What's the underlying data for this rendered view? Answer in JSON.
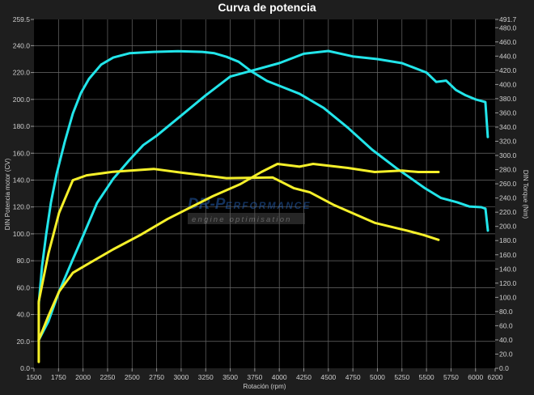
{
  "chart_data": {
    "type": "line",
    "title": "Curva de potencia",
    "xlabel": "Rotación (rpm)",
    "ylabel": "DIN Potencia motor (CV)",
    "y2label": "DIN Torque (Nm)",
    "xlim": [
      1500,
      6200
    ],
    "ylim": [
      0,
      259.5
    ],
    "y2lim": [
      0,
      491.7
    ],
    "xticks": [
      1500,
      1750,
      2000,
      2250,
      2500,
      2750,
      3000,
      3250,
      3500,
      3750,
      4000,
      4250,
      4500,
      4750,
      5000,
      5250,
      5500,
      5750,
      6000,
      6200
    ],
    "yticks": [
      "0.0",
      "20.0",
      "40.0",
      "60.0",
      "80.0",
      "100.0",
      "120.0",
      "140.0",
      "160.0",
      "180.0",
      "200.0",
      "220.0",
      "240.0",
      "259.5"
    ],
    "y2ticks": [
      "0.0",
      "20.0",
      "40.0",
      "60.0",
      "80.0",
      "100.0",
      "120.0",
      "140.0",
      "160.0",
      "180.0",
      "200.0",
      "220.0",
      "240.0",
      "260.0",
      "280.0",
      "300.0",
      "320.0",
      "340.0",
      "360.0",
      "380.0",
      "400.0",
      "420.0",
      "440.0",
      "460.0",
      "480.0",
      "491.7"
    ],
    "grid": true,
    "background": "#000000",
    "series": [
      {
        "axis": "left",
        "color": "#22e5ea",
        "x": [
          1549,
          1648,
          1756,
          1896,
          2003,
          2143,
          2308,
          2473,
          2613,
          2750,
          3000,
          3250,
          3500,
          3750,
          4000,
          4250,
          4500,
          4750,
          5000,
          5250,
          5500,
          5600,
          5700,
          5800,
          5900,
          6000,
          6100,
          6125
        ],
        "y": [
          21,
          35,
          57,
          81,
          99,
          123,
          141,
          155,
          166,
          173,
          188,
          203,
          217,
          222,
          227,
          234,
          236,
          232,
          230,
          227,
          220,
          213,
          214,
          207,
          203,
          200,
          198,
          172
        ]
      },
      {
        "axis": "right",
        "color": "#22e5ea",
        "x": [
          1549,
          1582,
          1624,
          1673,
          1731,
          1813,
          1896,
          1978,
          2061,
          2184,
          2308,
          2473,
          2720,
          2968,
          3215,
          3339,
          3462,
          3586,
          3710,
          3875,
          4040,
          4205,
          4452,
          4699,
          4947,
          5194,
          5359,
          5483,
          5648,
          5813,
          5936,
          6060,
          6101,
          6126
        ],
        "y": [
          91,
          143,
          188,
          234,
          274,
          319,
          359,
          388,
          408,
          428,
          438,
          444,
          446,
          447,
          446,
          444,
          439,
          432,
          419,
          405,
          396,
          387,
          367,
          339,
          308,
          282,
          266,
          254,
          240,
          234,
          228,
          227,
          225,
          194
        ]
      },
      {
        "axis": "left",
        "color": "#f5f02a",
        "x": [
          1549,
          1648,
          1756,
          1896,
          2036,
          2308,
          2580,
          2861,
          3075,
          3322,
          3603,
          3817,
          3982,
          4205,
          4345,
          4700,
          4972,
          5252,
          5417,
          5623
        ],
        "y": [
          21,
          39,
          57,
          71,
          77,
          88.5,
          99,
          111,
          119,
          128,
          137,
          146,
          152,
          150,
          152,
          149,
          146,
          147,
          146,
          146
        ]
      },
      {
        "axis": "right",
        "color": "#f5f02a",
        "x": [
          1549,
          1549,
          1648,
          1756,
          1896,
          2036,
          2308,
          2720,
          2993,
          3462,
          3932,
          4147,
          4312,
          4559,
          4972,
          5302,
          5466,
          5623
        ],
        "y": [
          9,
          94,
          162,
          219,
          265,
          272,
          277,
          281,
          276,
          268,
          269,
          254,
          248,
          230,
          205,
          194,
          188,
          181
        ]
      }
    ]
  },
  "watermark": {
    "brand": "DR-Performance",
    "tagline": "engine optimisation"
  }
}
